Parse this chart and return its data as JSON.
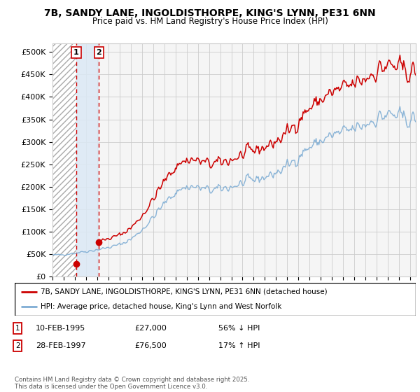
{
  "title_line1": "7B, SANDY LANE, INGOLDISTHORPE, KING'S LYNN, PE31 6NN",
  "title_line2": "Price paid vs. HM Land Registry's House Price Index (HPI)",
  "ylim": [
    0,
    520000
  ],
  "yticks": [
    0,
    50000,
    100000,
    150000,
    200000,
    250000,
    300000,
    350000,
    400000,
    450000,
    500000
  ],
  "ytick_labels": [
    "£0",
    "£50K",
    "£100K",
    "£150K",
    "£200K",
    "£250K",
    "£300K",
    "£350K",
    "£400K",
    "£450K",
    "£500K"
  ],
  "xlim_start": 1993.0,
  "xlim_end": 2025.5,
  "transaction1_date": 1995.12,
  "transaction1_price": 27000,
  "transaction1_label": "1",
  "transaction2_date": 1997.16,
  "transaction2_price": 76500,
  "transaction2_label": "2",
  "red_line_color": "#cc0000",
  "blue_line_color": "#7eadd4",
  "background_color": "#ffffff",
  "grid_color": "#cccccc",
  "legend_label_red": "7B, SANDY LANE, INGOLDISTHORPE, KING'S LYNN, PE31 6NN (detached house)",
  "legend_label_blue": "HPI: Average price, detached house, King's Lynn and West Norfolk",
  "footnote": "Contains HM Land Registry data © Crown copyright and database right 2025.\nThis data is licensed under the Open Government Licence v3.0.",
  "table_row1": [
    "1",
    "10-FEB-1995",
    "£27,000",
    "56% ↓ HPI"
  ],
  "table_row2": [
    "2",
    "28-FEB-1997",
    "£76,500",
    "17% ↑ HPI"
  ],
  "hpi_base_values": [
    47000,
    48000,
    50000,
    52000,
    55000,
    57000,
    60000,
    63000,
    67000,
    72000,
    80000,
    92000,
    108000,
    127000,
    148000,
    168000,
    185000,
    196000,
    200000,
    198000,
    194000,
    192000,
    194000,
    198000,
    202000,
    207000,
    213000,
    218000,
    222000,
    228000,
    236000,
    248000,
    262000,
    278000,
    290000,
    300000,
    308000,
    315000,
    320000,
    325000,
    330000,
    338000,
    348000,
    355000,
    360000,
    358000,
    352000,
    350000
  ],
  "red_ratio": 1.28
}
